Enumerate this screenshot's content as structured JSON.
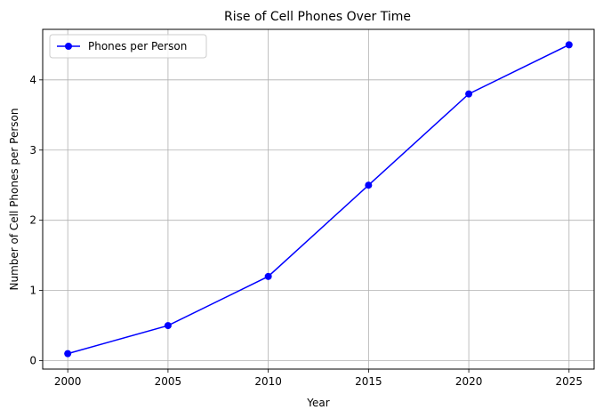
{
  "chart_data": {
    "type": "line",
    "title": "Rise of Cell Phones Over Time",
    "xlabel": "Year",
    "ylabel": "Number of Cell Phones per Person",
    "x": [
      2000,
      2005,
      2010,
      2015,
      2020,
      2025
    ],
    "series": [
      {
        "name": "Phones per Person",
        "values": [
          0.1,
          0.5,
          1.2,
          2.5,
          3.8,
          4.5
        ],
        "color": "#0000ff",
        "marker": "circle"
      }
    ],
    "xticks": [
      2000,
      2005,
      2010,
      2015,
      2020,
      2025
    ],
    "yticks": [
      0,
      1,
      2,
      3,
      4
    ],
    "xlim": [
      1998.75,
      2026.25
    ],
    "ylim": [
      -0.12,
      4.72
    ],
    "grid": true,
    "legend": "top-left"
  }
}
